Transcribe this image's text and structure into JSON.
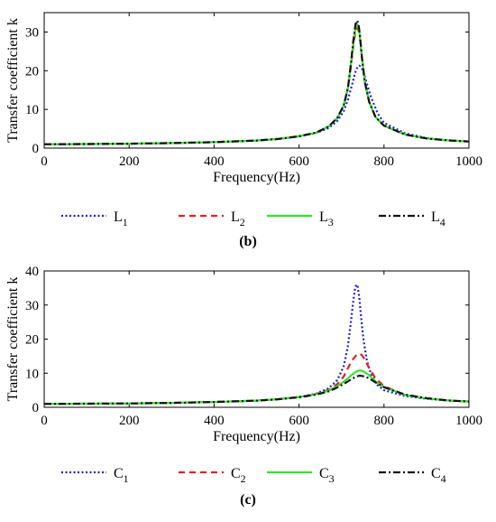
{
  "chart_data": [
    {
      "type": "line",
      "panel_label": "(b)",
      "xlabel": "Frequency(Hz)",
      "ylabel": "Transfer coefficient k",
      "xlim": [
        0,
        1000
      ],
      "ylim": [
        0,
        35
      ],
      "xticks": [
        0,
        200,
        400,
        600,
        800,
        1000
      ],
      "yticks": [
        0,
        10,
        20,
        30
      ],
      "grid": false,
      "legend_position": "bottom",
      "series": [
        {
          "name": "L",
          "subscript": "1",
          "color": "#1f1fd0",
          "dash": "2,2.5",
          "x": [
            0,
            100,
            200,
            300,
            400,
            500,
            550,
            600,
            640,
            670,
            690,
            705,
            715,
            725,
            732,
            738,
            742,
            746,
            752,
            760,
            770,
            785,
            800,
            850,
            900,
            950,
            1000
          ],
          "y": [
            1.0,
            1.05,
            1.15,
            1.3,
            1.55,
            1.95,
            2.35,
            3.0,
            3.9,
            5.2,
            7.0,
            9.5,
            12.5,
            16.5,
            19.5,
            21.0,
            21.3,
            21.0,
            19.5,
            16.5,
            13.0,
            9.0,
            6.5,
            3.8,
            2.6,
            2.0,
            1.7
          ]
        },
        {
          "name": "L",
          "subscript": "2",
          "color": "#e02020",
          "dash": "7,5",
          "x": [
            0,
            100,
            200,
            300,
            400,
            500,
            550,
            600,
            640,
            670,
            690,
            705,
            715,
            722,
            728,
            733,
            737,
            740,
            743,
            748,
            755,
            765,
            780,
            800,
            850,
            900,
            950,
            1000
          ],
          "y": [
            1.0,
            1.05,
            1.15,
            1.3,
            1.55,
            1.95,
            2.35,
            3.05,
            4.0,
            5.6,
            7.8,
            11.0,
            15.5,
            21.0,
            26.5,
            30.0,
            31.0,
            30.5,
            28.5,
            23.5,
            17.0,
            12.0,
            8.0,
            5.8,
            3.5,
            2.5,
            2.0,
            1.7
          ]
        },
        {
          "name": "L",
          "subscript": "3",
          "color": "#2ee62e",
          "dash": "",
          "x": [
            0,
            100,
            200,
            300,
            400,
            500,
            550,
            600,
            640,
            670,
            690,
            705,
            715,
            722,
            728,
            733,
            737,
            740,
            743,
            748,
            755,
            765,
            780,
            800,
            850,
            900,
            950,
            1000
          ],
          "y": [
            1.0,
            1.05,
            1.15,
            1.3,
            1.55,
            1.95,
            2.35,
            3.05,
            4.0,
            5.6,
            7.8,
            11.0,
            15.5,
            21.5,
            27.5,
            31.0,
            32.0,
            31.5,
            29.0,
            23.5,
            17.0,
            12.0,
            8.0,
            5.8,
            3.5,
            2.5,
            2.0,
            1.7
          ]
        },
        {
          "name": "L",
          "subscript": "4",
          "color": "#111111",
          "dash": "8,3,2,3",
          "x": [
            0,
            100,
            200,
            300,
            400,
            500,
            550,
            600,
            640,
            670,
            690,
            705,
            715,
            722,
            728,
            733,
            737,
            740,
            743,
            748,
            755,
            765,
            780,
            800,
            850,
            900,
            950,
            1000
          ],
          "y": [
            1.0,
            1.05,
            1.15,
            1.3,
            1.55,
            1.95,
            2.35,
            3.05,
            4.0,
            5.6,
            7.8,
            11.0,
            15.5,
            21.8,
            28.0,
            32.0,
            33.0,
            32.0,
            29.5,
            23.5,
            17.0,
            12.0,
            8.0,
            5.8,
            3.5,
            2.5,
            2.0,
            1.7
          ]
        }
      ]
    },
    {
      "type": "line",
      "panel_label": "(c)",
      "xlabel": "Frequency(Hz)",
      "ylabel": "Transfer coefficient k",
      "xlim": [
        0,
        1000
      ],
      "ylim": [
        0,
        40
      ],
      "xticks": [
        0,
        200,
        400,
        600,
        800,
        1000
      ],
      "yticks": [
        0,
        10,
        20,
        30,
        40
      ],
      "grid": false,
      "legend_position": "bottom",
      "series": [
        {
          "name": "C",
          "subscript": "1",
          "color": "#1f1fd0",
          "dash": "2,2.5",
          "x": [
            0,
            100,
            200,
            300,
            400,
            500,
            550,
            600,
            640,
            670,
            690,
            705,
            715,
            722,
            728,
            732,
            735,
            738,
            742,
            746,
            752,
            760,
            770,
            785,
            800,
            850,
            900,
            950,
            1000
          ],
          "y": [
            1.0,
            1.05,
            1.15,
            1.3,
            1.55,
            1.95,
            2.35,
            3.05,
            4.0,
            5.6,
            8.0,
            12.0,
            18.0,
            25.0,
            31.5,
            35.0,
            36.0,
            35.5,
            32.0,
            26.5,
            19.5,
            13.5,
            9.5,
            6.5,
            5.0,
            3.3,
            2.5,
            2.0,
            1.7
          ]
        },
        {
          "name": "C",
          "subscript": "2",
          "color": "#e02020",
          "dash": "7,5",
          "x": [
            0,
            100,
            200,
            300,
            400,
            500,
            550,
            600,
            640,
            670,
            690,
            705,
            715,
            725,
            735,
            742,
            748,
            755,
            765,
            780,
            800,
            850,
            900,
            950,
            1000
          ],
          "y": [
            1.0,
            1.05,
            1.15,
            1.3,
            1.55,
            1.95,
            2.35,
            3.0,
            3.9,
            5.1,
            6.8,
            9.0,
            11.5,
            13.8,
            15.3,
            15.8,
            15.3,
            14.0,
            11.5,
            8.5,
            6.2,
            3.6,
            2.6,
            2.0,
            1.7
          ]
        },
        {
          "name": "C",
          "subscript": "3",
          "color": "#2ee62e",
          "dash": "",
          "x": [
            0,
            100,
            200,
            300,
            400,
            500,
            550,
            600,
            640,
            670,
            690,
            710,
            725,
            735,
            742,
            748,
            755,
            765,
            780,
            800,
            850,
            900,
            950,
            1000
          ],
          "y": [
            1.0,
            1.05,
            1.15,
            1.3,
            1.55,
            1.95,
            2.35,
            3.0,
            3.8,
            4.9,
            6.2,
            8.0,
            9.6,
            10.5,
            10.8,
            10.7,
            10.3,
            9.4,
            7.6,
            5.9,
            3.6,
            2.6,
            2.0,
            1.7
          ]
        },
        {
          "name": "C",
          "subscript": "4",
          "color": "#111111",
          "dash": "8,3,2,3",
          "x": [
            0,
            100,
            200,
            300,
            400,
            500,
            550,
            600,
            640,
            670,
            690,
            710,
            725,
            735,
            742,
            748,
            755,
            765,
            780,
            800,
            850,
            900,
            950,
            1000
          ],
          "y": [
            1.0,
            1.05,
            1.15,
            1.3,
            1.55,
            1.95,
            2.35,
            2.95,
            3.7,
            4.7,
            5.8,
            7.2,
            8.4,
            9.0,
            9.3,
            9.2,
            9.0,
            8.5,
            7.3,
            5.9,
            3.7,
            2.7,
            2.0,
            1.7
          ]
        }
      ]
    }
  ]
}
